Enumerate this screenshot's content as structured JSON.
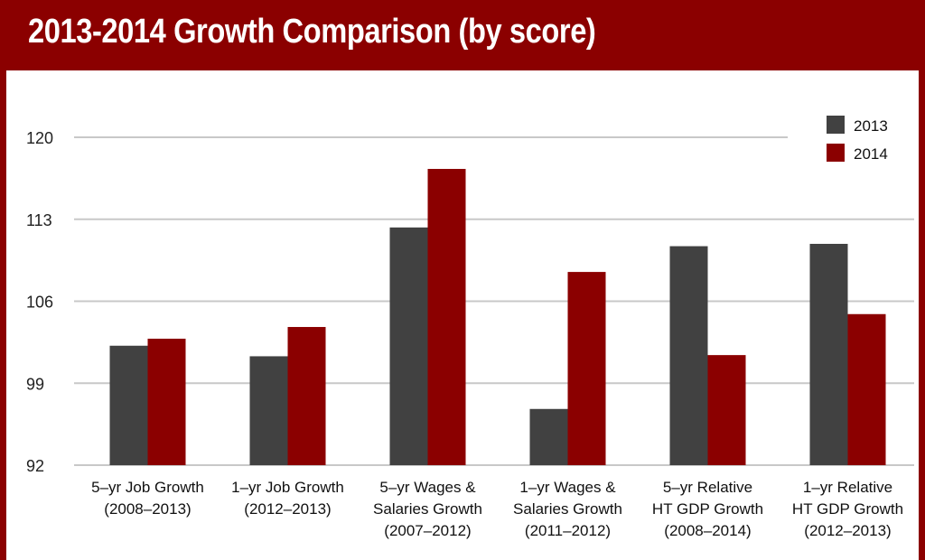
{
  "title": "2013-2014 Growth Comparison (by score)",
  "chart_data": {
    "type": "bar",
    "title": "2013-2014 Growth Comparison (by score)",
    "categories": [
      [
        "5–yr Job Growth",
        "(2008–2013)"
      ],
      [
        "1–yr Job Growth",
        "(2012–2013)"
      ],
      [
        "5–yr Wages &",
        "Salaries Growth",
        "(2007–2012)"
      ],
      [
        "1–yr Wages &",
        "Salaries Growth",
        "(2011–2012)"
      ],
      [
        "5–yr Relative",
        "HT GDP Growth",
        "(2008–2014)"
      ],
      [
        "1–yr Relative",
        "HT GDP Growth",
        "(2012–2013)"
      ]
    ],
    "series": [
      {
        "name": "2013",
        "color": "#414141",
        "values": [
          102.2,
          101.3,
          112.3,
          96.8,
          110.7,
          110.9
        ]
      },
      {
        "name": "2014",
        "color": "#8b0000",
        "values": [
          102.8,
          103.8,
          117.3,
          108.5,
          101.4,
          104.9
        ]
      }
    ],
    "yticks": [
      92,
      99,
      106,
      113,
      120
    ],
    "ylim": [
      92,
      120
    ],
    "xlabel": "",
    "ylabel": "",
    "grid": true,
    "legend_position": "top-right"
  }
}
